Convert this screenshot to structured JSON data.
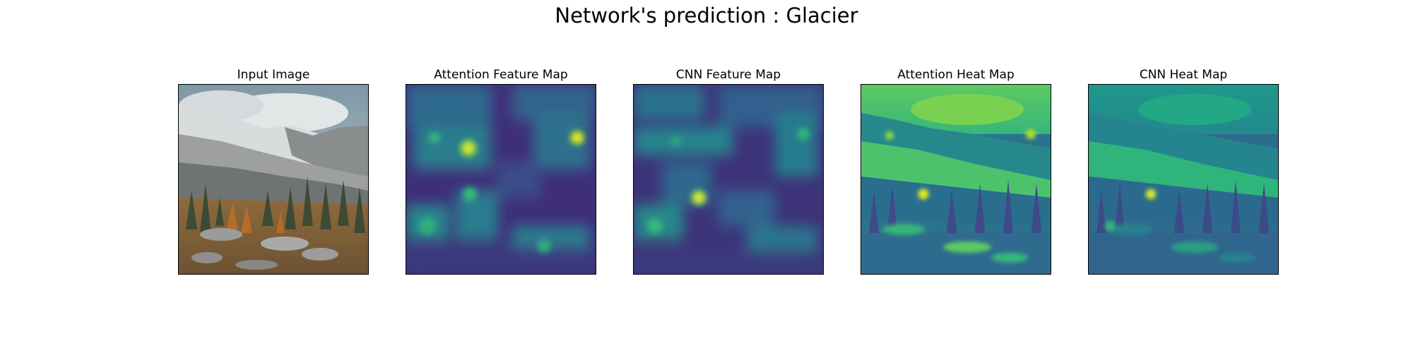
{
  "figure": {
    "title": "Network's prediction : Glacier",
    "panels": [
      {
        "title": "Input Image",
        "content": "photograph"
      },
      {
        "title": "Attention Feature Map",
        "content": "heatmap",
        "colormap": "viridis"
      },
      {
        "title": "CNN Feature Map",
        "content": "heatmap",
        "colormap": "viridis"
      },
      {
        "title": "Attention Heat Map",
        "content": "heatmap-overlay",
        "colormap": "viridis"
      },
      {
        "title": "CNN Heat Map",
        "content": "heatmap-overlay",
        "colormap": "viridis"
      }
    ]
  },
  "colors": {
    "viridis_low": "#440154",
    "viridis_dark": "#3b2a78",
    "viridis_blue": "#31688e",
    "viridis_teal": "#21918c",
    "viridis_green": "#35b779",
    "viridis_light": "#8fd744",
    "viridis_high": "#fde725"
  }
}
